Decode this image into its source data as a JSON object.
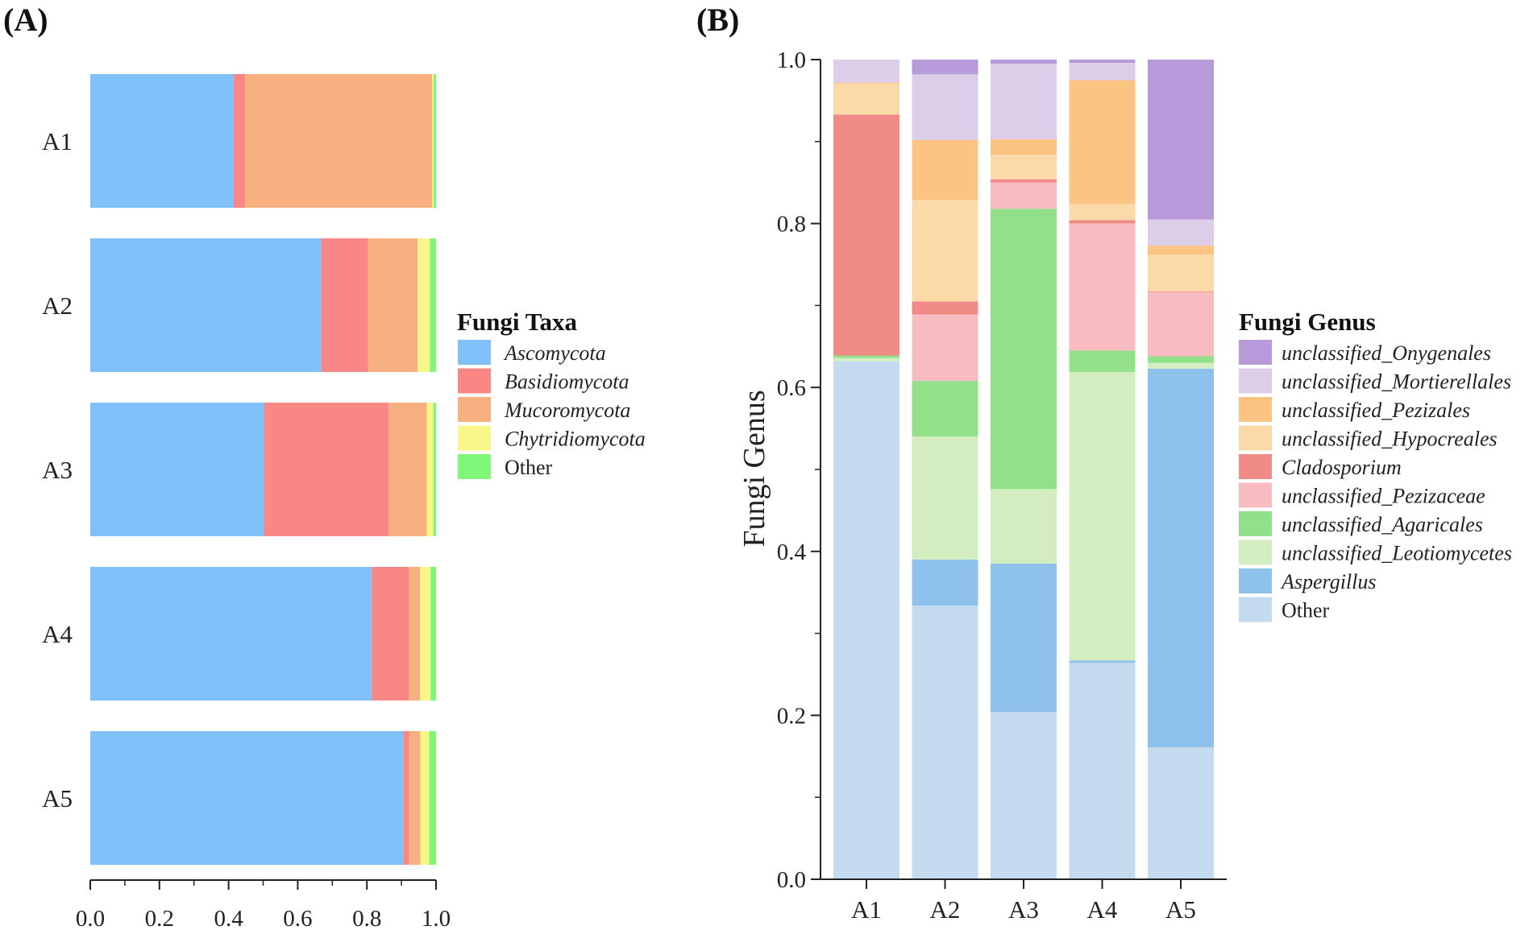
{
  "chart_data": [
    {
      "panel_label": "(A)",
      "type": "bar",
      "orientation": "horizontal",
      "stacked": true,
      "categories": [
        "A1",
        "A2",
        "A3",
        "A4",
        "A5"
      ],
      "xlim": [
        0.0,
        1.0
      ],
      "xticks": [
        "0.0",
        "0.2",
        "0.4",
        "0.6",
        "0.8",
        "1.0"
      ],
      "xlabel": "",
      "ylabel": "",
      "legend_title": "Fungi Taxa",
      "legend_position": "right",
      "series": [
        {
          "name": "Ascomycota",
          "italic": true,
          "color": "#80c1f9",
          "values": [
            0.415,
            0.668,
            0.502,
            0.814,
            0.905
          ]
        },
        {
          "name": "Basidiomycota",
          "italic": true,
          "color": "#f98785",
          "values": [
            0.033,
            0.135,
            0.361,
            0.108,
            0.017
          ]
        },
        {
          "name": "Mucoromycota",
          "italic": true,
          "color": "#f9b081",
          "values": [
            0.541,
            0.144,
            0.11,
            0.032,
            0.033
          ]
        },
        {
          "name": "Chytridiomycota",
          "italic": true,
          "color": "#f9f689",
          "values": [
            0.004,
            0.035,
            0.019,
            0.03,
            0.025
          ]
        },
        {
          "name": "Other",
          "italic": false,
          "color": "#81f77a",
          "values": [
            0.007,
            0.018,
            0.008,
            0.016,
            0.02
          ]
        }
      ]
    },
    {
      "panel_label": "(B)",
      "type": "bar",
      "orientation": "vertical",
      "stacked": true,
      "categories": [
        "A1",
        "A2",
        "A3",
        "A4",
        "A5"
      ],
      "ylim": [
        0.0,
        1.0
      ],
      "yticks": [
        "0.0",
        "0.2",
        "0.4",
        "0.6",
        "0.8",
        "1.0"
      ],
      "xlabel": "",
      "ylabel": "Fungi Genus",
      "legend_title": "Fungi Genus",
      "legend_position": "right",
      "series": [
        {
          "name": "Other",
          "italic": false,
          "color": "#c4daee",
          "values": [
            0.632,
            0.334,
            0.204,
            0.264,
            0.161
          ]
        },
        {
          "name": "Aspergillus",
          "italic": true,
          "color": "#8ec2ec",
          "values": [
            0.0,
            0.056,
            0.181,
            0.003,
            0.462
          ]
        },
        {
          "name": "unclassified_Leotiomycetes",
          "italic": true,
          "color": "#d4edc0",
          "values": [
            0.004,
            0.15,
            0.091,
            0.352,
            0.007
          ]
        },
        {
          "name": "unclassified_Agaricales",
          "italic": true,
          "color": "#92e18a",
          "values": [
            0.003,
            0.068,
            0.342,
            0.026,
            0.008
          ]
        },
        {
          "name": "unclassified_Pezizaceae",
          "italic": true,
          "color": "#f8bcc0",
          "values": [
            0.0,
            0.081,
            0.032,
            0.155,
            0.078
          ]
        },
        {
          "name": "Cladosporium",
          "italic": true,
          "color": "#f08b87",
          "values": [
            0.294,
            0.016,
            0.004,
            0.004,
            0.001
          ]
        },
        {
          "name": "unclassified_Hypocreales",
          "italic": true,
          "color": "#fbd9a9",
          "values": [
            0.038,
            0.124,
            0.03,
            0.02,
            0.045
          ]
        },
        {
          "name": "unclassified_Pezizales",
          "italic": true,
          "color": "#fbc482",
          "values": [
            0.001,
            0.073,
            0.019,
            0.151,
            0.011
          ]
        },
        {
          "name": "unclassified_Mortierellales",
          "italic": true,
          "color": "#dccde8",
          "values": [
            0.028,
            0.08,
            0.092,
            0.021,
            0.032
          ]
        },
        {
          "name": "unclassified_Onygenales",
          "italic": true,
          "color": "#b79ad9",
          "values": [
            0.0,
            0.018,
            0.005,
            0.004,
            0.195
          ]
        }
      ]
    }
  ]
}
